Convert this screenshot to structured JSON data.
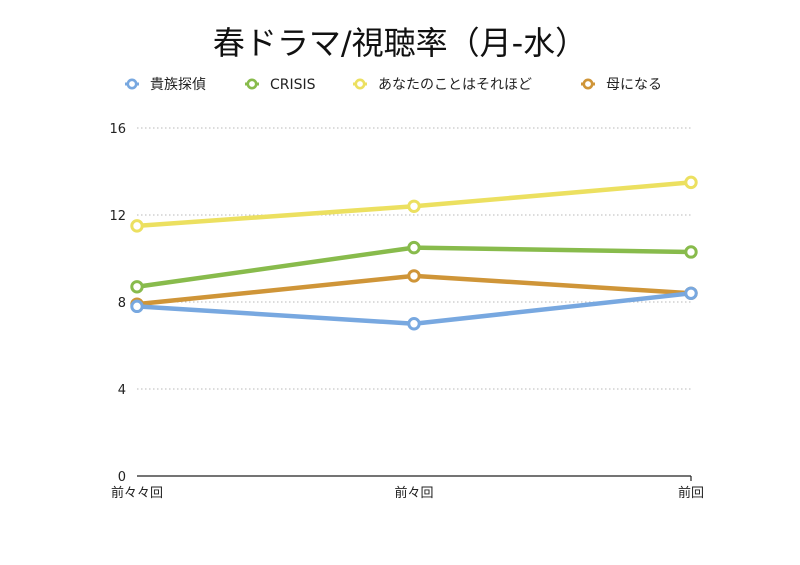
{
  "chart_data": {
    "type": "line",
    "title": "春ドラマ/視聴率（月-水）",
    "xlabel": "",
    "ylabel": "",
    "categories": [
      "前々々回",
      "前々回",
      "前回"
    ],
    "ylim": [
      0,
      16
    ],
    "yticks": [
      0,
      4,
      8,
      12,
      16
    ],
    "grid": true,
    "legend_position": "top",
    "series": [
      {
        "name": "貴族探偵",
        "color": "#78a8e0",
        "values": [
          7.8,
          7.0,
          8.4
        ]
      },
      {
        "name": "CRISIS",
        "color": "#88bb4c",
        "values": [
          8.7,
          10.5,
          10.3
        ]
      },
      {
        "name": "あなたのことはそれほど",
        "color": "#ece060",
        "values": [
          11.5,
          12.4,
          13.5
        ]
      },
      {
        "name": "母になる",
        "color": "#cf9538",
        "values": [
          7.9,
          9.2,
          8.4
        ]
      }
    ]
  }
}
